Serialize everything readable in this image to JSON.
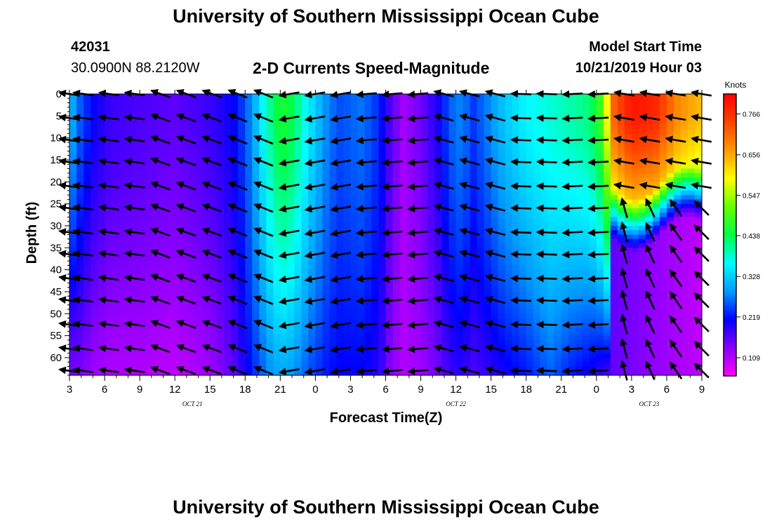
{
  "header": {
    "title": "University of Southern Mississippi Ocean Cube",
    "station_id": "42031",
    "coordinates": "30.0900N 88.2120W",
    "plot_title": "2-D Currents Speed-Magnitude",
    "start_label": "Model Start Time",
    "start_value": "10/21/2019 Hour 03"
  },
  "footer": {
    "title": "University of Southern Mississippi Ocean Cube"
  },
  "chart_data": {
    "type": "heatmap",
    "xlabel": "Forecast Time(Z)",
    "ylabel": "Depth (ft)",
    "x_range_hours": [
      0,
      54
    ],
    "x_ticks": [
      {
        "h": 0,
        "label": "3"
      },
      {
        "h": 3,
        "label": "6"
      },
      {
        "h": 6,
        "label": "9"
      },
      {
        "h": 9,
        "label": "12"
      },
      {
        "h": 12,
        "label": "15"
      },
      {
        "h": 15,
        "label": "18"
      },
      {
        "h": 18,
        "label": "21"
      },
      {
        "h": 21,
        "label": "0"
      },
      {
        "h": 24,
        "label": "3"
      },
      {
        "h": 27,
        "label": "6"
      },
      {
        "h": 30,
        "label": "9"
      },
      {
        "h": 33,
        "label": "12"
      },
      {
        "h": 36,
        "label": "15"
      },
      {
        "h": 39,
        "label": "18"
      },
      {
        "h": 42,
        "label": "21"
      },
      {
        "h": 45,
        "label": "0"
      },
      {
        "h": 48,
        "label": "3"
      },
      {
        "h": 51,
        "label": "6"
      },
      {
        "h": 54,
        "label": "9"
      }
    ],
    "date_labels": [
      {
        "h": 10.5,
        "label": "OCT 21"
      },
      {
        "h": 33,
        "label": "OCT 22"
      },
      {
        "h": 49.5,
        "label": "OCT 23"
      }
    ],
    "y_range_ft": [
      0,
      64
    ],
    "y_ticks": [
      0,
      5,
      10,
      15,
      20,
      25,
      30,
      35,
      40,
      45,
      50,
      55,
      60
    ],
    "colorbar": {
      "title": "Knots",
      "min": 0.06,
      "max": 0.82,
      "ticks": [
        0.109,
        0.219,
        0.328,
        0.438,
        0.547,
        0.656,
        0.766
      ],
      "tick_labels": [
        "0.109",
        "0.219",
        "0.328",
        "0.438",
        "0.547",
        "0.656",
        "0.766"
      ],
      "colors": [
        "#ff00ff",
        "#8800ff",
        "#0000ff",
        "#0099ff",
        "#00ffff",
        "#00ff44",
        "#66ff00",
        "#ffff00",
        "#ff9900",
        "#ff4400",
        "#ff0000"
      ]
    },
    "speed_profile": {
      "columns": [
        {
          "h": 0,
          "top": 0.32,
          "bottom": 0.14
        },
        {
          "h": 1,
          "top": 0.25,
          "bottom": 0.14
        },
        {
          "h": 2,
          "top": 0.21,
          "bottom": 0.12
        },
        {
          "h": 3.5,
          "top": 0.18,
          "bottom": 0.11
        },
        {
          "h": 6,
          "top": 0.17,
          "bottom": 0.11
        },
        {
          "h": 9,
          "top": 0.16,
          "bottom": 0.1
        },
        {
          "h": 12,
          "top": 0.18,
          "bottom": 0.12
        },
        {
          "h": 14,
          "top": 0.21,
          "bottom": 0.16
        },
        {
          "h": 15,
          "top": 0.25,
          "bottom": 0.2
        },
        {
          "h": 16,
          "top": 0.32,
          "bottom": 0.24
        },
        {
          "h": 17,
          "top": 0.4,
          "bottom": 0.28
        },
        {
          "h": 18,
          "top": 0.46,
          "bottom": 0.3
        },
        {
          "h": 19,
          "top": 0.44,
          "bottom": 0.29
        },
        {
          "h": 20.5,
          "top": 0.35,
          "bottom": 0.25
        },
        {
          "h": 22,
          "top": 0.28,
          "bottom": 0.22
        },
        {
          "h": 23,
          "top": 0.25,
          "bottom": 0.21
        },
        {
          "h": 25,
          "top": 0.27,
          "bottom": 0.21
        },
        {
          "h": 26.5,
          "top": 0.23,
          "bottom": 0.19
        },
        {
          "h": 27.5,
          "top": 0.16,
          "bottom": 0.13
        },
        {
          "h": 28.5,
          "top": 0.12,
          "bottom": 0.11
        },
        {
          "h": 30,
          "top": 0.15,
          "bottom": 0.12
        },
        {
          "h": 31.5,
          "top": 0.2,
          "bottom": 0.15
        },
        {
          "h": 32.5,
          "top": 0.26,
          "bottom": 0.18
        },
        {
          "h": 33.5,
          "top": 0.28,
          "bottom": 0.19
        },
        {
          "h": 34.5,
          "top": 0.24,
          "bottom": 0.17
        },
        {
          "h": 35.5,
          "top": 0.27,
          "bottom": 0.18
        },
        {
          "h": 37,
          "top": 0.32,
          "bottom": 0.2
        },
        {
          "h": 39,
          "top": 0.36,
          "bottom": 0.22
        },
        {
          "h": 41,
          "top": 0.38,
          "bottom": 0.26
        },
        {
          "h": 43,
          "top": 0.4,
          "bottom": 0.22
        },
        {
          "h": 44.5,
          "top": 0.42,
          "bottom": 0.2
        },
        {
          "h": 45.5,
          "top": 0.5,
          "bottom": 0.18
        },
        {
          "h": 46.5,
          "top": 0.72,
          "bottom": 0.16
        },
        {
          "h": 48,
          "top": 0.8,
          "bottom": 0.15
        },
        {
          "h": 50,
          "top": 0.78,
          "bottom": 0.14
        },
        {
          "h": 52,
          "top": 0.68,
          "bottom": 0.13
        },
        {
          "h": 54,
          "top": 0.64,
          "bottom": 0.14
        }
      ]
    },
    "vectors": {
      "hours": [
        0,
        1.2,
        3.4,
        5.6,
        7.8,
        10,
        12.2,
        14.4,
        16.6,
        18.8,
        21,
        23.2,
        25.4,
        27.6,
        29.8,
        32,
        34.2,
        36.4,
        38.6,
        40.8,
        43,
        45.2,
        47.4,
        49.6,
        51.8,
        54
      ],
      "depths_ft": [
        0,
        5.5,
        10.5,
        15.5,
        21,
        26,
        31.5,
        36.5,
        42,
        47,
        52.5,
        58,
        63
      ],
      "segments": [
        {
          "h_from": 0,
          "h_to": 7,
          "deg": 172
        },
        {
          "h_from": 7,
          "h_to": 14,
          "deg": 160
        },
        {
          "h_from": 14,
          "h_to": 18,
          "deg": 158
        },
        {
          "h_from": 18,
          "h_to": 24,
          "deg": 190
        },
        {
          "h_from": 24,
          "h_to": 30,
          "deg": 185
        },
        {
          "h_from": 30,
          "h_to": 38,
          "deg": 165
        },
        {
          "h_from": 38,
          "h_to": 43,
          "deg": 178
        },
        {
          "h_from": 43,
          "h_to": 46,
          "deg": 183
        },
        {
          "h_from": 46,
          "h_to": 54.1,
          "deg": 170
        }
      ],
      "lower_east": {
        "h_from": 46.3,
        "depth_from": 24,
        "deg_near": 100,
        "deg_far": 135
      }
    }
  }
}
